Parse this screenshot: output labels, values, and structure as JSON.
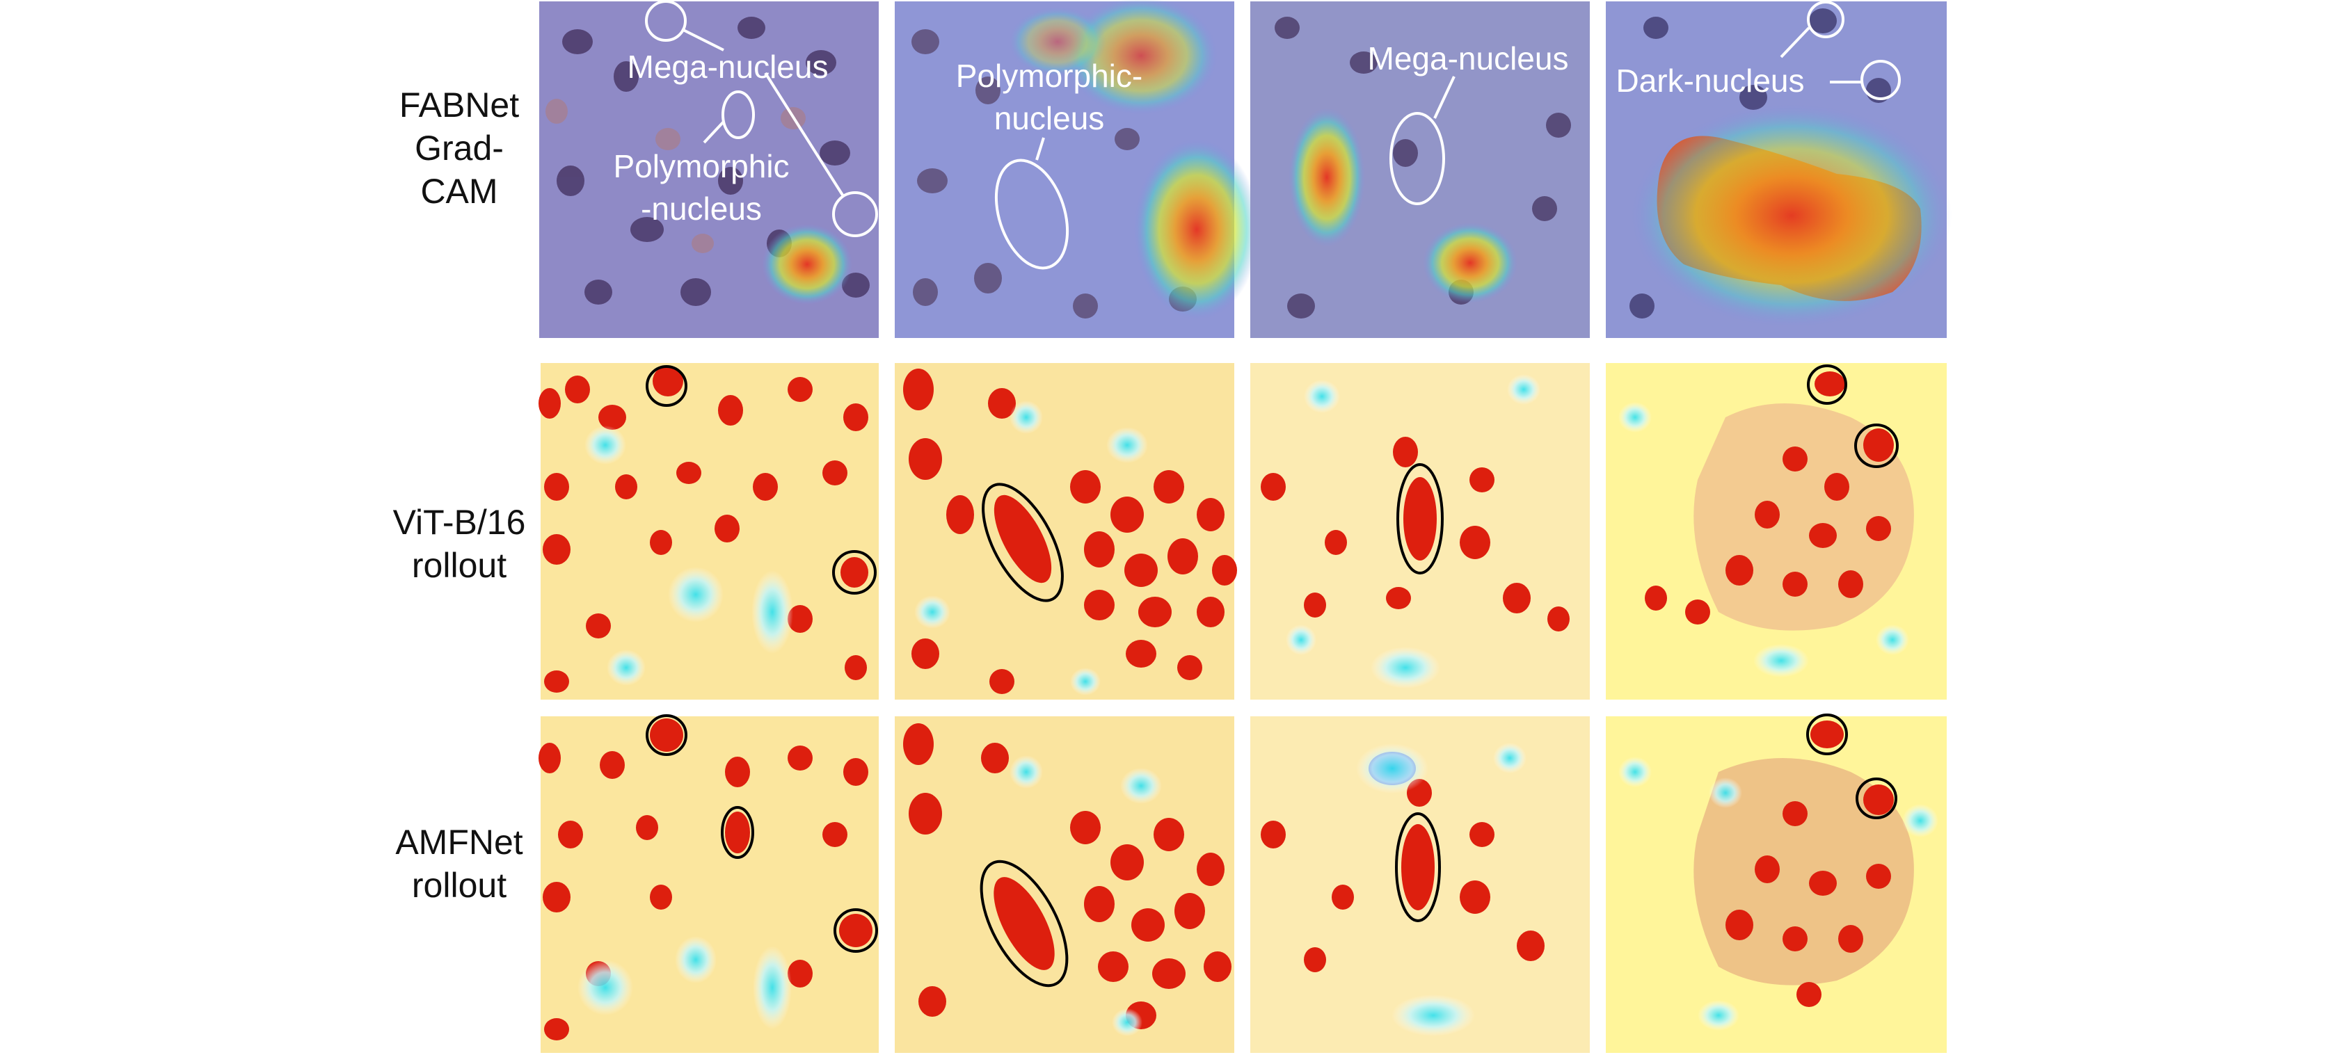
{
  "row_labels": [
    {
      "line1": "FABNet",
      "line2": "Grad-",
      "line3": "CAM"
    },
    {
      "line1": "ViT-B/16",
      "line2": "rollout",
      "line3": ""
    },
    {
      "line1": "AMFNet",
      "line2": "rollout",
      "line3": ""
    }
  ],
  "annotations": {
    "col1_mega": "Mega-nucleus",
    "col1_poly_1": "Polymorphic",
    "col1_poly_2": "-nucleus",
    "col2_poly_1": "Polymorphic-",
    "col2_poly_2": "nucleus",
    "col3_mega": "Mega-nucleus",
    "col4_dark": "Dark-nucleus"
  },
  "colors": {
    "tissue_purple": "#8d88c4",
    "nucleus_dark": "#3c2a5a",
    "heat_red": "#e8321e",
    "heat_yellow": "#ffe400",
    "rollout_bg": "#fff59a",
    "rollout_nucleus": "#dd1f0e",
    "circle_white": "#ffffff",
    "circle_black": "#000000"
  }
}
